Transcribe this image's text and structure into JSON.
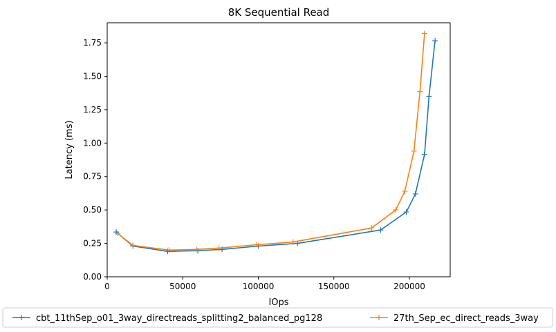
{
  "chart_data": {
    "type": "line",
    "title": "8K  Sequential Read",
    "xlabel": "IOps",
    "ylabel": "Latency (ms)",
    "xlim": [
      0,
      227000
    ],
    "ylim": [
      0,
      1.9
    ],
    "xticks": [
      0,
      50000,
      100000,
      150000,
      200000
    ],
    "yticks": [
      0.0,
      0.25,
      0.5,
      0.75,
      1.0,
      1.25,
      1.5,
      1.75
    ],
    "xtick_labels": [
      "0",
      "50000",
      "100000",
      "150000",
      "200000"
    ],
    "ytick_labels": [
      "0.00",
      "0.25",
      "0.50",
      "0.75",
      "1.00",
      "1.25",
      "1.50",
      "1.75"
    ],
    "grid": false,
    "legend_position": "bottom",
    "series": [
      {
        "name": "cbt_11thSep_o01_3way_directreads_splitting2_balanced_pg128",
        "color": "#1f77b4",
        "marker": "plus",
        "x": [
          6000,
          17000,
          40000,
          60000,
          76000,
          100000,
          126000,
          181000,
          198000,
          204000,
          210000,
          213000,
          217000
        ],
        "y": [
          0.335,
          0.23,
          0.19,
          0.195,
          0.205,
          0.23,
          0.25,
          0.35,
          0.485,
          0.62,
          0.915,
          1.35,
          1.765
        ]
      },
      {
        "name": "27th_Sep_ec_direct_reads_3way",
        "color": "#ff7f0e",
        "marker": "plus",
        "x": [
          7000,
          17000,
          41000,
          59000,
          74000,
          99000,
          123000,
          175000,
          191000,
          197000,
          203000,
          207000,
          210000
        ],
        "y": [
          0.325,
          0.235,
          0.2,
          0.205,
          0.215,
          0.24,
          0.26,
          0.365,
          0.5,
          0.64,
          0.94,
          1.385,
          1.82
        ]
      }
    ]
  }
}
